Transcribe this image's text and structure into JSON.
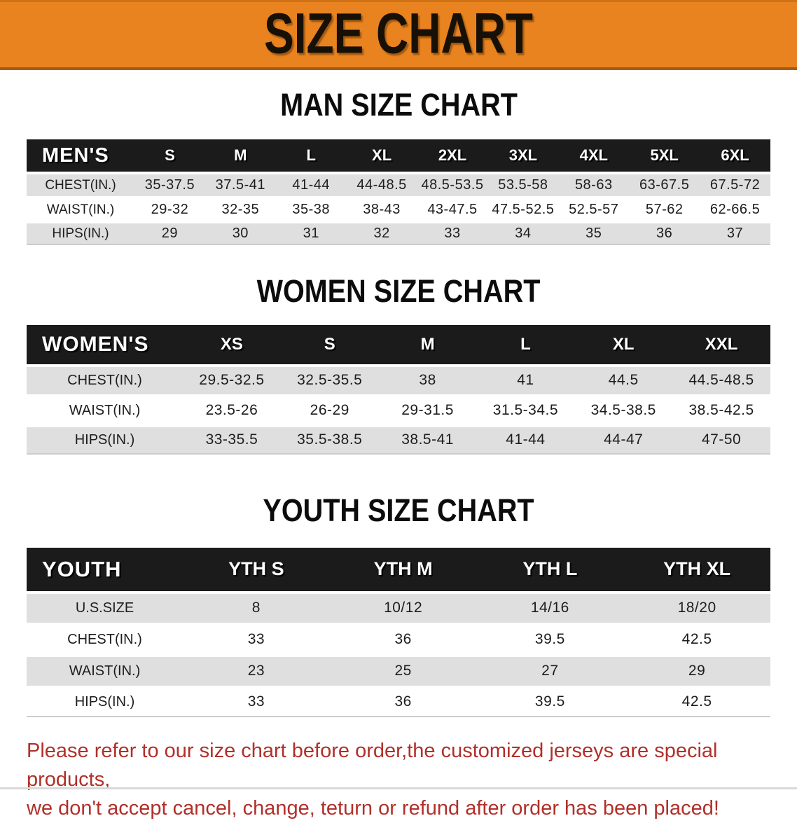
{
  "banner": {
    "title": "SIZE CHART"
  },
  "colors": {
    "banner_orange": "#e8831f",
    "banner_edge": "#a85c12",
    "header_black": "#1b1b1b",
    "row_gray": "#dfdfdf",
    "note_red": "#b1302a"
  },
  "sections": [
    {
      "title": "MAN SIZE CHART",
      "header": [
        "MEN'S",
        "S",
        "M",
        "L",
        "XL",
        "2XL",
        "3XL",
        "4XL",
        "5XL",
        "6XL"
      ],
      "rows": [
        {
          "label": "CHEST(IN.)",
          "values": [
            "35-37.5",
            "37.5-41",
            "41-44",
            "44-48.5",
            "48.5-53.5",
            "53.5-58",
            "58-63",
            "63-67.5",
            "67.5-72"
          ]
        },
        {
          "label": "WAIST(IN.)",
          "values": [
            "29-32",
            "32-35",
            "35-38",
            "38-43",
            "43-47.5",
            "47.5-52.5",
            "52.5-57",
            "57-62",
            "62-66.5"
          ]
        },
        {
          "label": "HIPS(IN.)",
          "values": [
            "29",
            "30",
            "31",
            "32",
            "33",
            "34",
            "35",
            "36",
            "37"
          ]
        }
      ]
    },
    {
      "title": "WOMEN SIZE CHART",
      "header": [
        "WOMEN'S",
        "XS",
        "S",
        "M",
        "L",
        "XL",
        "XXL"
      ],
      "rows": [
        {
          "label": "CHEST(IN.)",
          "values": [
            "29.5-32.5",
            "32.5-35.5",
            "38",
            "41",
            "44.5",
            "44.5-48.5"
          ]
        },
        {
          "label": "WAIST(IN.)",
          "values": [
            "23.5-26",
            "26-29",
            "29-31.5",
            "31.5-34.5",
            "34.5-38.5",
            "38.5-42.5"
          ]
        },
        {
          "label": "HIPS(IN.)",
          "values": [
            "33-35.5",
            "35.5-38.5",
            "38.5-41",
            "41-44",
            "44-47",
            "47-50"
          ]
        }
      ]
    },
    {
      "title": "YOUTH SIZE CHART",
      "header": [
        "YOUTH",
        "YTH S",
        "YTH M",
        "YTH L",
        "YTH XL"
      ],
      "rows": [
        {
          "label": "U.S.SIZE",
          "values": [
            "8",
            "10/12",
            "14/16",
            "18/20"
          ]
        },
        {
          "label": "CHEST(IN.)",
          "values": [
            "33",
            "36",
            "39.5",
            "42.5"
          ]
        },
        {
          "label": "WAIST(IN.)",
          "values": [
            "23",
            "25",
            "27",
            "29"
          ]
        },
        {
          "label": "HIPS(IN.)",
          "values": [
            "33",
            "36",
            "39.5",
            "42.5"
          ]
        }
      ]
    }
  ],
  "note": {
    "line1": "Please refer to our size chart before order,the customized jerseys are special products,",
    "line2": "we don't accept cancel, change, teturn or refund after order has been placed!"
  }
}
